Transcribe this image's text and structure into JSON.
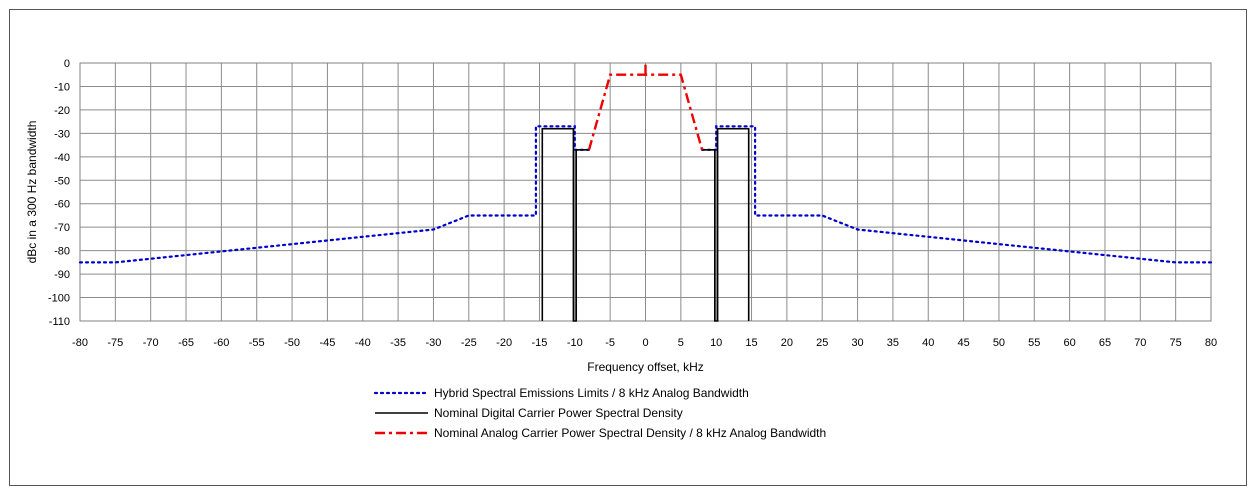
{
  "chart_data": {
    "type": "line",
    "title": "",
    "xlabel": "Frequency offset, kHz",
    "ylabel": "dBc in a 300 Hz bandwidth",
    "xlim": [
      -80,
      80
    ],
    "ylim": [
      -110,
      0
    ],
    "x_ticks": [
      -80,
      -75,
      -70,
      -65,
      -60,
      -55,
      -50,
      -45,
      -40,
      -35,
      -30,
      -25,
      -20,
      -15,
      -10,
      -5,
      0,
      5,
      10,
      15,
      20,
      25,
      30,
      35,
      40,
      45,
      50,
      55,
      60,
      65,
      70,
      75,
      80
    ],
    "y_ticks": [
      0,
      -10,
      -20,
      -30,
      -40,
      -50,
      -60,
      -70,
      -80,
      -90,
      -100,
      -110
    ],
    "grid": true,
    "legend_position": "bottom",
    "series": [
      {
        "name": "Hybrid Spectral Emissions Limits / 8 kHz Analog Bandwidth",
        "color": "#0000CC",
        "style": "dotted",
        "x": [
          -80,
          -75,
          -30,
          -25,
          -15.5,
          -15.5,
          -14.5,
          -14.5,
          -10,
          -10,
          -10,
          -8,
          -8
        ],
        "y": [
          -85,
          -85,
          -71,
          -65,
          -65,
          -27,
          -27,
          -27,
          -27,
          -37,
          -37,
          -37,
          -37
        ]
      },
      {
        "name": "Hybrid Spectral Emissions Limits / 8 kHz Analog Bandwidth",
        "color": "#0000CC",
        "style": "dotted",
        "x": [
          8,
          8,
          10,
          10,
          10,
          14.5,
          14.5,
          15.5,
          15.5,
          25,
          30,
          75,
          80
        ],
        "y": [
          -37,
          -37,
          -37,
          -37,
          -27,
          -27,
          -27,
          -27,
          -65,
          -65,
          -71,
          -85,
          -85
        ]
      },
      {
        "name": "Nominal Digital Carrier Power Spectral Density",
        "color": "#000000",
        "style": "solid",
        "x": [
          -14.6,
          -14.6,
          -10.2,
          -10.2,
          -9.8,
          -9.8,
          -8,
          -8
        ],
        "y": [
          -110,
          -28,
          -28,
          -110,
          -110,
          -37,
          -37,
          -37
        ]
      },
      {
        "name": "Nominal Digital Carrier Power Spectral Density",
        "color": "#000000",
        "style": "solid",
        "x": [
          8,
          8,
          9.8,
          9.8,
          10.2,
          10.2,
          14.6,
          14.6
        ],
        "y": [
          -37,
          -37,
          -37,
          -110,
          -110,
          -28,
          -28,
          -110
        ]
      },
      {
        "name": "Nominal Analog Carrier Power Spectral Density / 8 kHz Analog Bandwidth",
        "color": "#EE0000",
        "style": "dashdot",
        "x": [
          -8,
          -5,
          5,
          8
        ],
        "y": [
          -37,
          -5,
          -5,
          -37
        ]
      },
      {
        "name": "Nominal Analog Carrier Power Spectral Density / 8 kHz Analog Bandwidth",
        "color": "#EE0000",
        "style": "dashdot",
        "x": [
          0,
          0
        ],
        "y": [
          -5,
          0
        ]
      }
    ],
    "legend": [
      {
        "label": "Hybrid Spectral Emissions Limits / 8 kHz Analog Bandwidth",
        "color": "#0000CC",
        "style": "dotted"
      },
      {
        "label": "Nominal Digital Carrier Power Spectral Density",
        "color": "#000000",
        "style": "solid"
      },
      {
        "label": "Nominal Analog Carrier Power Spectral Density / 8 kHz Analog Bandwidth",
        "color": "#EE0000",
        "style": "dashdot"
      }
    ]
  }
}
